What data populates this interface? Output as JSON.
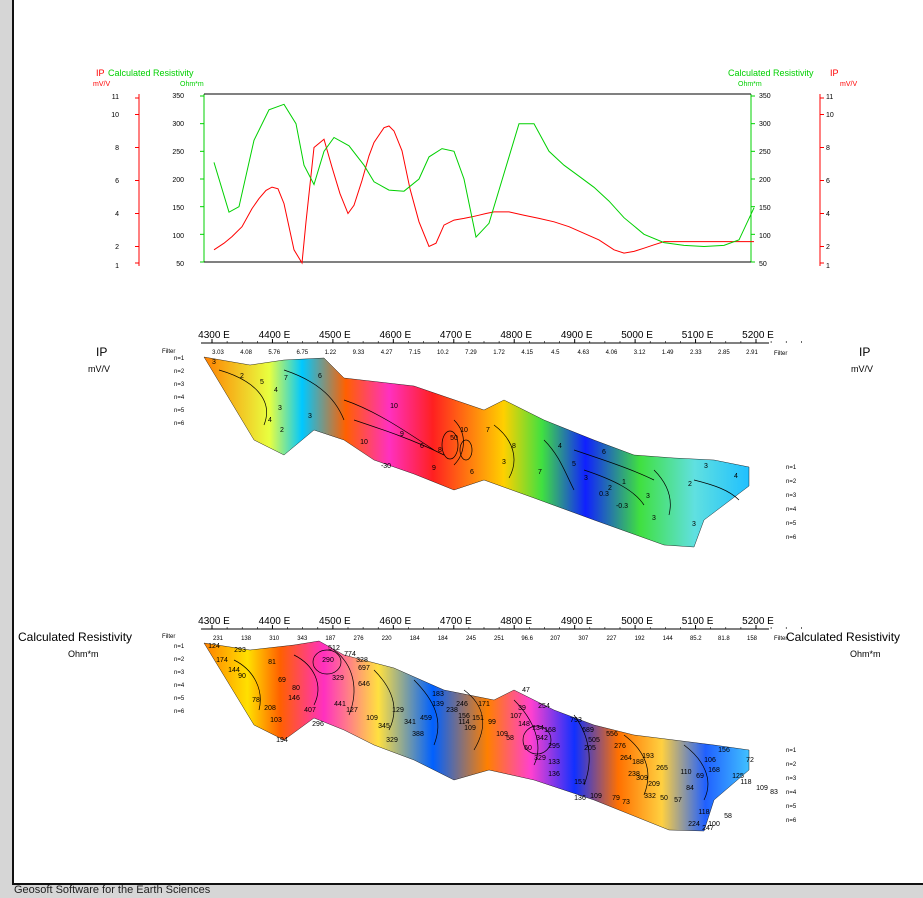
{
  "footer": "Geosoft Software for the Earth Sciences",
  "colors": {
    "ip": "#ff0000",
    "resistivity": "#00d000"
  },
  "chart_data": [
    {
      "type": "line",
      "series": [
        {
          "name": "IP",
          "unit": "mV/V",
          "color": "#ff0000",
          "x": [
            0,
            10,
            18,
            28,
            38,
            45,
            52,
            58,
            64,
            70,
            80,
            88,
            92,
            100,
            110,
            118,
            126,
            134,
            140,
            148,
            155,
            160,
            170,
            175,
            180,
            188,
            196,
            205,
            215,
            222,
            230,
            240,
            250,
            258,
            265,
            272,
            280,
            295,
            310,
            325,
            340,
            355,
            370,
            385,
            400,
            410,
            420,
            430,
            440,
            450,
            460,
            470,
            480,
            490,
            500,
            510,
            520,
            530,
            540
          ],
          "y": [
            1.8,
            2.2,
            2.6,
            3.2,
            4.3,
            4.9,
            5.4,
            5.6,
            5.5,
            4.6,
            1.8,
            1.0,
            3.5,
            8.0,
            8.5,
            6.8,
            5.2,
            4.0,
            4.5,
            6.0,
            7.5,
            8.3,
            9.2,
            9.3,
            9.0,
            7.8,
            5.5,
            3.5,
            2.0,
            2.2,
            3.3,
            3.6,
            3.7,
            3.8,
            3.9,
            4.0,
            4.1,
            4.1,
            3.9,
            3.7,
            3.5,
            3.2,
            2.8,
            2.4,
            1.8,
            1.6,
            1.7,
            1.9,
            2.1,
            2.3,
            2.3,
            2.3,
            2.3,
            2.3,
            2.3,
            2.3,
            2.3,
            2.3,
            2.3
          ]
        },
        {
          "name": "Calculated Resistivity",
          "unit": "Ohm*m",
          "color": "#00d000",
          "x": [
            0,
            15,
            25,
            40,
            55,
            70,
            82,
            90,
            100,
            110,
            120,
            135,
            150,
            160,
            175,
            190,
            205,
            215,
            228,
            240,
            250,
            262,
            275,
            290,
            305,
            320,
            335,
            350,
            365,
            380,
            395,
            410,
            430,
            450,
            470,
            490,
            510,
            525,
            540
          ],
          "y": [
            230,
            140,
            150,
            270,
            325,
            335,
            300,
            225,
            190,
            250,
            275,
            260,
            225,
            195,
            180,
            178,
            200,
            240,
            255,
            250,
            200,
            95,
            120,
            210,
            300,
            300,
            250,
            225,
            205,
            185,
            160,
            130,
            100,
            85,
            80,
            78,
            80,
            90,
            148
          ]
        }
      ],
      "left_axes": {
        "ip": {
          "title": "IP",
          "unit": "mV/V",
          "ticks": [
            "1",
            "2",
            "4",
            "6",
            "8",
            "10",
            "11"
          ]
        },
        "resistivity": {
          "title": "Calculated Resistivity",
          "unit": "Ohm*m",
          "ticks": [
            "50",
            "100",
            "150",
            "200",
            "250",
            "300",
            "350"
          ]
        }
      },
      "right_axes": {
        "resistivity": {
          "title": "Calculated Resistivity",
          "unit": "Ohm*m",
          "ticks": [
            "50",
            "100",
            "150",
            "200",
            "250",
            "300",
            "350"
          ]
        },
        "ip": {
          "title": "IP",
          "unit": "mV/V",
          "ticks": [
            "1",
            "2",
            "4",
            "6",
            "8",
            "10",
            "11"
          ]
        }
      },
      "ip_range": [
        1,
        11
      ],
      "resistivity_range": [
        50,
        350
      ]
    },
    {
      "type": "heatmap",
      "title": "IP",
      "unit": "mV/V",
      "x_ticks": [
        "4300 E",
        "4400 E",
        "4500 E",
        "4600 E",
        "4700 E",
        "4800 E",
        "4900 E",
        "5000 E",
        "5100 E",
        "5200 E"
      ],
      "filter_label": "Filter",
      "filter_values": [
        "3.03",
        "4.08",
        "5.76",
        "6.75",
        "1.22",
        "9.33",
        "4.27",
        "7.15",
        "10.2",
        "7.29",
        "1.72",
        "4.15",
        "4.5",
        "4.63",
        "4.06",
        "3.12",
        "1.49",
        "2.33",
        "2.85",
        "2.91"
      ],
      "n_levels": [
        "n=1",
        "n=2",
        "n=3",
        "n=4",
        "n=5",
        "n=6"
      ],
      "contour_labels": [
        "3",
        "2",
        "4",
        "5",
        "7",
        "6",
        "3",
        "2",
        "4",
        "3",
        "10",
        "9",
        "10",
        "6",
        "8",
        "7",
        "10",
        "50",
        "-30",
        "9",
        "6",
        "3",
        "8",
        "7",
        "4",
        "5",
        "6",
        "3",
        "2",
        "1",
        "0.3",
        "-0.3",
        "3",
        "2",
        "3",
        "3",
        "3",
        "4"
      ]
    },
    {
      "type": "heatmap",
      "title": "Calculated Resistivity",
      "unit": "Ohm*m",
      "x_ticks": [
        "4300 E",
        "4400 E",
        "4500 E",
        "4600 E",
        "4700 E",
        "4800 E",
        "4900 E",
        "5000 E",
        "5100 E",
        "5200 E"
      ],
      "filter_label": "Filter",
      "filter_values": [
        "231",
        "138",
        "310",
        "343",
        "187",
        "276",
        "220",
        "184",
        "184",
        "245",
        "251",
        "96.6",
        "207",
        "307",
        "227",
        "192",
        "144",
        "85.2",
        "81.8",
        "158"
      ],
      "n_levels": [
        "n=1",
        "n=2",
        "n=3",
        "n=4",
        "n=5",
        "n=6"
      ],
      "contour_labels": [
        "124",
        "174",
        "293",
        "144",
        "90",
        "78",
        "208",
        "103",
        "194",
        "81",
        "69",
        "80",
        "146",
        "407",
        "296",
        "290",
        "329",
        "512",
        "774",
        "328",
        "697",
        "646",
        "441",
        "127",
        "109",
        "345",
        "329",
        "341",
        "388",
        "459",
        "129",
        "139",
        "183",
        "238",
        "114",
        "109",
        "156",
        "246",
        "151",
        "171",
        "99",
        "109",
        "58",
        "39",
        "47",
        "107",
        "148",
        "134",
        "254",
        "342",
        "168",
        "295",
        "329",
        "136",
        "60",
        "133",
        "793",
        "689",
        "556",
        "505",
        "205",
        "276",
        "264",
        "238",
        "188",
        "193",
        "309",
        "209",
        "265",
        "151",
        "136",
        "109",
        "79",
        "73",
        "332",
        "50",
        "57",
        "84",
        "69",
        "110",
        "106",
        "156",
        "168",
        "125",
        "72",
        "118",
        "100",
        "58",
        "118",
        "109",
        "83",
        "224",
        "247"
      ]
    }
  ]
}
